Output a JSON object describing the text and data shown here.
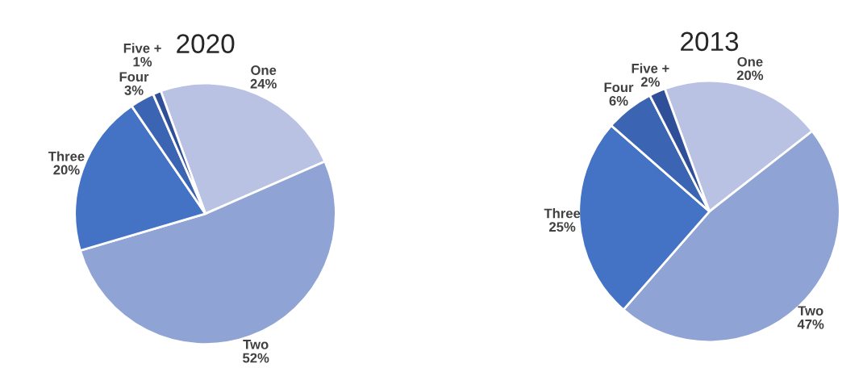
{
  "chart_data": [
    {
      "type": "pie",
      "title": "2020",
      "categories": [
        "One",
        "Two",
        "Three",
        "Four",
        "Five +"
      ],
      "values": [
        24,
        52,
        20,
        3,
        1
      ],
      "value_labels": [
        "24%",
        "52%",
        "20%",
        "3%",
        "1%"
      ],
      "colors": [
        "#b9c2e3",
        "#8fa3d4",
        "#4472c4",
        "#3b64b2",
        "#2f5099"
      ]
    },
    {
      "type": "pie",
      "title": "2013",
      "categories": [
        "One",
        "Two",
        "Three",
        "Four",
        "Five +"
      ],
      "values": [
        20,
        47,
        25,
        6,
        2
      ],
      "value_labels": [
        "20%",
        "47%",
        "25%",
        "6%",
        "2%"
      ],
      "colors": [
        "#b9c2e3",
        "#8fa3d4",
        "#4472c4",
        "#3b64b2",
        "#2f5099"
      ]
    }
  ]
}
